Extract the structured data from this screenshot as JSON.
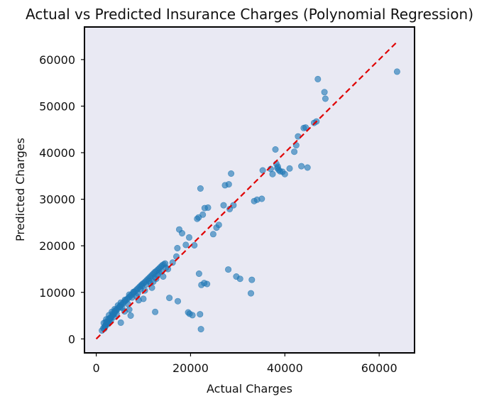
{
  "chart_data": {
    "type": "scatter",
    "title": "Actual vs Predicted Insurance Charges (Polynomial Regression)",
    "xlabel": "Actual Charges",
    "ylabel": "Predicted Charges",
    "xlim": [
      -2500,
      67500
    ],
    "ylim": [
      -3000,
      67000
    ],
    "xticks": [
      0,
      20000,
      40000,
      60000
    ],
    "xtick_labels": [
      "0",
      "20000",
      "40000",
      "60000"
    ],
    "yticks": [
      0,
      10000,
      20000,
      30000,
      40000,
      50000,
      60000
    ],
    "ytick_labels": [
      "0",
      "10000",
      "20000",
      "30000",
      "40000",
      "50000",
      "60000"
    ],
    "grid": false,
    "colors": {
      "points": "#1f77b4",
      "reference_line": "#e00000",
      "background": "#e9e9f3"
    },
    "reference_line": {
      "from": [
        0,
        0
      ],
      "to": [
        63770,
        63770
      ],
      "style": "dashed"
    },
    "series": [
      {
        "x": [
          1200,
          1500,
          1800,
          2000,
          2200,
          2400,
          2600,
          2800,
          3000,
          3200,
          3400,
          3600,
          3800,
          4000,
          4200,
          4500,
          4800,
          5000,
          5300,
          5600,
          5900,
          6200,
          6500,
          6800,
          7100,
          7400,
          7700,
          8000,
          8300,
          8600,
          8900,
          9200,
          9500,
          9800,
          10100,
          10400,
          10700,
          11000,
          11300,
          11600,
          11900,
          12200,
          12500,
          12800,
          13100,
          13400,
          13700,
          14000,
          14300,
          14600,
          1600,
          2100,
          2700,
          3300,
          3900,
          4600,
          5200,
          6100,
          7000,
          7900,
          8800,
          9700,
          10600,
          11500,
          12400,
          13300,
          1900,
          2500,
          3100,
          3700,
          4300,
          5500,
          6700,
          7600,
          8500,
          9400,
          10300,
          11200,
          12100,
          13000,
          13900,
          14800,
          6000,
          7000,
          9000,
          10000,
          11800,
          2000,
          2600,
          12700,
          14200,
          15200,
          1700,
          2300,
          2900,
          3500,
          4100,
          5100,
          16200,
          17000,
          17200,
          17600,
          18200,
          19000,
          19700,
          20800,
          21400,
          21700,
          22100,
          22600,
          23000,
          23700,
          27300,
          28100,
          28600,
          29100,
          33500,
          34100,
          35100,
          35300,
          37000,
          37400,
          38000,
          38200,
          38400,
          38500,
          38700,
          39000,
          39500,
          40000,
          41000,
          42000,
          42400,
          42800,
          43500,
          44000,
          44400,
          44800,
          46200,
          46700,
          47000,
          48400,
          48600,
          63800,
          12500,
          15500,
          17300,
          20400,
          21800,
          22000,
          22300,
          28000,
          29700,
          30500,
          32800,
          33000,
          19500,
          19800,
          22200,
          22900,
          23500,
          24800,
          25500,
          26000,
          27000,
          28300,
          5200,
          7300
        ],
        "y": [
          1800,
          2300,
          2700,
          2900,
          3200,
          3500,
          3700,
          4000,
          4400,
          4700,
          5000,
          5200,
          5500,
          5800,
          6100,
          6400,
          6800,
          7000,
          7300,
          7600,
          7900,
          8200,
          8500,
          8800,
          9100,
          9400,
          9700,
          10000,
          10300,
          10600,
          10900,
          11200,
          11500,
          11800,
          12000,
          12300,
          12600,
          12900,
          13200,
          13500,
          13800,
          14100,
          14400,
          14600,
          14900,
          15200,
          15500,
          15800,
          16000,
          16200,
          3400,
          4200,
          5100,
          5800,
          6400,
          7200,
          7800,
          8400,
          9500,
          10100,
          9800,
          11400,
          11700,
          12000,
          13200,
          14200,
          2600,
          3200,
          3900,
          4700,
          5400,
          6700,
          7500,
          8900,
          9200,
          10700,
          10400,
          12500,
          12300,
          13700,
          14500,
          15300,
          5900,
          6300,
          8300,
          8600,
          11000,
          3600,
          4300,
          12900,
          13400,
          15000,
          2200,
          3700,
          4500,
          5500,
          6200,
          6800,
          16400,
          17700,
          19500,
          23500,
          22700,
          20200,
          21800,
          20100,
          25800,
          26100,
          32300,
          26700,
          28100,
          28200,
          33000,
          33200,
          35500,
          28700,
          29600,
          29900,
          30100,
          36200,
          36500,
          35400,
          40700,
          37600,
          36700,
          37000,
          36300,
          36000,
          35900,
          35400,
          36600,
          40200,
          41600,
          43500,
          37100,
          45300,
          45400,
          36800,
          46400,
          46700,
          55800,
          53000,
          51600,
          57400,
          5800,
          8800,
          8100,
          5100,
          14000,
          5300,
          11600,
          14900,
          13400,
          12900,
          9800,
          12700,
          5700,
          5400,
          2100,
          12000,
          11800,
          22500,
          23900,
          24500,
          28700,
          27900,
          3500,
          5000
        ]
      }
    ]
  }
}
